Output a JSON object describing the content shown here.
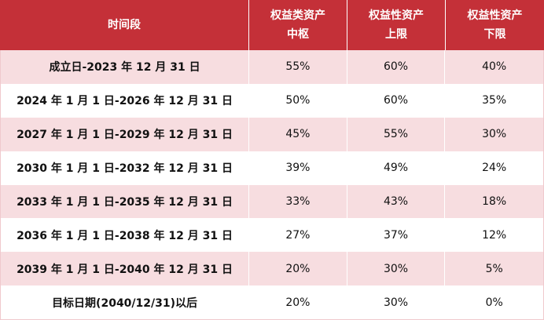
{
  "header": {
    "period": "时间段",
    "equity_center_line1": "权益类资产",
    "equity_center_line2": "中枢",
    "equity_upper_line1": "权益性资产",
    "equity_upper_line2": "上限",
    "equity_lower_line1": "权益性资产",
    "equity_lower_line2": "下限"
  },
  "rows": [
    {
      "period": "成立日-2023 年 12 月 31 日",
      "center": "55%",
      "upper": "60%",
      "lower": "40%"
    },
    {
      "period": "2024 年 1 月 1 日-2026 年 12 月 31 日",
      "center": "50%",
      "upper": "60%",
      "lower": "35%"
    },
    {
      "period": "2027 年 1 月 1 日-2029 年 12 月 31 日",
      "center": "45%",
      "upper": "55%",
      "lower": "30%"
    },
    {
      "period": "2030 年 1 月 1 日-2032 年 12 月 31 日",
      "center": "39%",
      "upper": "49%",
      "lower": "24%"
    },
    {
      "period": "2033 年 1 月 1 日-2035 年 12 月 31 日",
      "center": "33%",
      "upper": "43%",
      "lower": "18%"
    },
    {
      "period": "2036 年 1 月 1 日-2038 年 12 月 31 日",
      "center": "27%",
      "upper": "37%",
      "lower": "12%"
    },
    {
      "period": "2039 年 1 月 1 日-2040 年 12 月 31 日",
      "center": "20%",
      "upper": "30%",
      "lower": "5%"
    },
    {
      "period": "目标日期(2040/12/31)以后",
      "center": "20%",
      "upper": "30%",
      "lower": "0%"
    }
  ],
  "colors": {
    "header_bg": "#c43038",
    "stripe_bg": "#f7dde0",
    "plain_bg": "#ffffff"
  }
}
